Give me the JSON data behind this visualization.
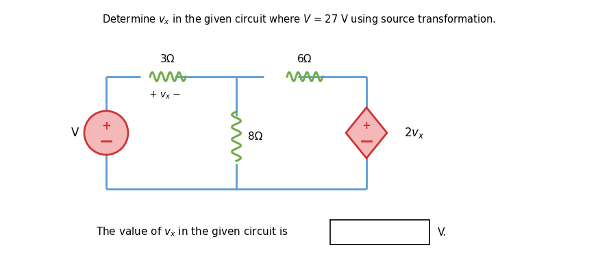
{
  "title": "Determine $v_x$ in the given circuit where $V$ = 27 V using source transformation.",
  "bg_color": "#ffffff",
  "wire_color": "#5b9bd5",
  "resistor_color": "#70ad47",
  "source_fill": "#ff0000",
  "source_fill_light": "#ffaaaa",
  "bottom_text": "The value of $v_x$ in the given circuit is",
  "R1_label": "3Ω",
  "R2_label": "6Ω",
  "R3_label": "8Ω",
  "V_label": "V",
  "dep_label": "2$v_x$",
  "vx_label": "+ $v_x$ −"
}
